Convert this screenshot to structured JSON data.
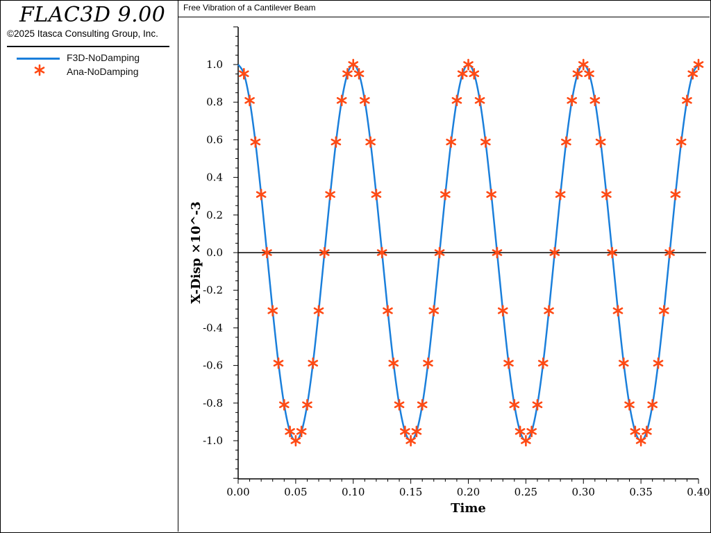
{
  "app": {
    "title": "FLAC3D 9.00",
    "copyright": "©2025 Itasca Consulting Group, Inc."
  },
  "legend": [
    {
      "label": "F3D-NoDamping",
      "marker": "line",
      "color": "#1a7fdb"
    },
    {
      "label": "Ana-NoDamping",
      "marker": "asterisk",
      "color": "#ff4a14"
    }
  ],
  "plot": {
    "title": "Free Vibration of a Cantilever Beam"
  },
  "chart_data": {
    "type": "line",
    "title": "Free Vibration of a Cantilever Beam",
    "xlabel": "Time",
    "ylabel": "X-Disp ×10^-3",
    "xlim": [
      0.0,
      0.4
    ],
    "ylim": [
      -1.2,
      1.2
    ],
    "x_ticks": [
      "0.00",
      "0.05",
      "0.10",
      "0.15",
      "0.20",
      "0.25",
      "0.30",
      "0.35",
      "0.40"
    ],
    "y_ticks": [
      "1.0",
      "0.8",
      "0.6",
      "0.4",
      "0.2",
      "0.0",
      "-0.2",
      "-0.4",
      "-0.6",
      "-0.8",
      "-1.0"
    ],
    "zero_line": true,
    "series": [
      {
        "name": "F3D-NoDamping",
        "kind": "line",
        "color": "#1a7fdb",
        "x": [
          0.0,
          0.005,
          0.01,
          0.015,
          0.02,
          0.025,
          0.03,
          0.035,
          0.04,
          0.045,
          0.05,
          0.055,
          0.06,
          0.065,
          0.07,
          0.075,
          0.08,
          0.085,
          0.09,
          0.095,
          0.1,
          0.105,
          0.11,
          0.115,
          0.12,
          0.125,
          0.13,
          0.135,
          0.14,
          0.145,
          0.15,
          0.155,
          0.16,
          0.165,
          0.17,
          0.175,
          0.18,
          0.185,
          0.19,
          0.195,
          0.2,
          0.205,
          0.21,
          0.215,
          0.22,
          0.225,
          0.23,
          0.235,
          0.24,
          0.245,
          0.25,
          0.255,
          0.26,
          0.265,
          0.27,
          0.275,
          0.28,
          0.285,
          0.29,
          0.295,
          0.3,
          0.305,
          0.31,
          0.315,
          0.32,
          0.325,
          0.33,
          0.335,
          0.34,
          0.345,
          0.35,
          0.355,
          0.36,
          0.365,
          0.37,
          0.375,
          0.38,
          0.385,
          0.39,
          0.395,
          0.4
        ],
        "y": [
          1.0,
          0.951,
          0.809,
          0.588,
          0.309,
          0.0,
          -0.309,
          -0.588,
          -0.809,
          -0.951,
          -1.0,
          -0.951,
          -0.809,
          -0.588,
          -0.309,
          0.0,
          0.309,
          0.588,
          0.809,
          0.951,
          1.0,
          0.951,
          0.809,
          0.588,
          0.309,
          0.0,
          -0.309,
          -0.588,
          -0.809,
          -0.951,
          -1.0,
          -0.951,
          -0.809,
          -0.588,
          -0.309,
          0.0,
          0.309,
          0.588,
          0.809,
          0.951,
          1.0,
          0.951,
          0.809,
          0.588,
          0.309,
          0.0,
          -0.309,
          -0.588,
          -0.809,
          -0.951,
          -1.0,
          -0.951,
          -0.809,
          -0.588,
          -0.309,
          0.0,
          0.309,
          0.588,
          0.809,
          0.951,
          1.0,
          0.951,
          0.809,
          0.588,
          0.309,
          0.0,
          -0.309,
          -0.588,
          -0.809,
          -0.951,
          -1.0,
          -0.951,
          -0.809,
          -0.588,
          -0.309,
          0.0,
          0.309,
          0.588,
          0.809,
          0.951,
          1.0
        ]
      },
      {
        "name": "Ana-NoDamping",
        "kind": "scatter",
        "marker": "asterisk",
        "color": "#ff4a14",
        "x": [
          0.005,
          0.01,
          0.015,
          0.02,
          0.025,
          0.03,
          0.035,
          0.04,
          0.045,
          0.05,
          0.055,
          0.06,
          0.065,
          0.07,
          0.075,
          0.08,
          0.085,
          0.09,
          0.095,
          0.1,
          0.105,
          0.11,
          0.115,
          0.12,
          0.125,
          0.13,
          0.135,
          0.14,
          0.145,
          0.15,
          0.155,
          0.16,
          0.165,
          0.17,
          0.175,
          0.18,
          0.185,
          0.19,
          0.195,
          0.2,
          0.205,
          0.21,
          0.215,
          0.22,
          0.225,
          0.23,
          0.235,
          0.24,
          0.245,
          0.25,
          0.255,
          0.26,
          0.265,
          0.27,
          0.275,
          0.28,
          0.285,
          0.29,
          0.295,
          0.3,
          0.305,
          0.31,
          0.315,
          0.32,
          0.325,
          0.33,
          0.335,
          0.34,
          0.345,
          0.35,
          0.355,
          0.36,
          0.365,
          0.37,
          0.375,
          0.38,
          0.385,
          0.39,
          0.395,
          0.4
        ],
        "y": [
          0.951,
          0.809,
          0.588,
          0.309,
          0.0,
          -0.309,
          -0.588,
          -0.809,
          -0.951,
          -1.0,
          -0.951,
          -0.809,
          -0.588,
          -0.309,
          0.0,
          0.309,
          0.588,
          0.809,
          0.951,
          1.0,
          0.951,
          0.809,
          0.588,
          0.309,
          0.0,
          -0.309,
          -0.588,
          -0.809,
          -0.951,
          -1.0,
          -0.951,
          -0.809,
          -0.588,
          -0.309,
          0.0,
          0.309,
          0.588,
          0.809,
          0.951,
          1.0,
          0.951,
          0.809,
          0.588,
          0.309,
          0.0,
          -0.309,
          -0.588,
          -0.809,
          -0.951,
          -1.0,
          -0.951,
          -0.809,
          -0.588,
          -0.309,
          0.0,
          0.309,
          0.588,
          0.809,
          0.951,
          1.0,
          0.951,
          0.809,
          0.588,
          0.309,
          0.0,
          -0.309,
          -0.588,
          -0.809,
          -0.951,
          -1.0,
          -0.951,
          -0.809,
          -0.588,
          -0.309,
          0.0,
          0.309,
          0.588,
          0.809,
          0.951,
          1.0
        ]
      }
    ]
  }
}
